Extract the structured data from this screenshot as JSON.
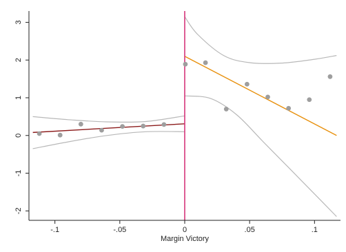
{
  "chart_data": {
    "type": "scatter",
    "title": "",
    "xlabel": "Margin Victory",
    "ylabel": "",
    "xlim": [
      -0.12,
      0.12
    ],
    "ylim": [
      -2.25,
      3.3
    ],
    "grid": false,
    "legend": "none",
    "x_ticks": [
      {
        "value": -0.1,
        "label": "-.1"
      },
      {
        "value": -0.05,
        "label": "-.05"
      },
      {
        "value": 0,
        "label": "0"
      },
      {
        "value": 0.05,
        "label": ".05"
      },
      {
        "value": 0.1,
        "label": ".1"
      }
    ],
    "y_ticks": [
      {
        "value": -2,
        "label": "-2"
      },
      {
        "value": -1,
        "label": "-1"
      },
      {
        "value": 0,
        "label": "0"
      },
      {
        "value": 1,
        "label": "1"
      },
      {
        "value": 2,
        "label": "2"
      },
      {
        "value": 3,
        "label": "3"
      }
    ],
    "cutoff_x": 0,
    "points": [
      {
        "x": -0.112,
        "y": 0.05
      },
      {
        "x": -0.096,
        "y": 0.01
      },
      {
        "x": -0.08,
        "y": 0.3
      },
      {
        "x": -0.064,
        "y": 0.14
      },
      {
        "x": -0.048,
        "y": 0.24
      },
      {
        "x": -0.032,
        "y": 0.25
      },
      {
        "x": -0.016,
        "y": 0.29
      },
      {
        "x": 0.0005,
        "y": 1.89
      },
      {
        "x": 0.016,
        "y": 1.93
      },
      {
        "x": 0.032,
        "y": 0.7
      },
      {
        "x": 0.048,
        "y": 1.36
      },
      {
        "x": 0.064,
        "y": 1.02
      },
      {
        "x": 0.08,
        "y": 0.72
      },
      {
        "x": 0.096,
        "y": 0.95
      },
      {
        "x": 0.112,
        "y": 1.56
      }
    ],
    "fit_left": {
      "x": [
        -0.117,
        0
      ],
      "y": [
        0.08,
        0.31
      ]
    },
    "fit_right": {
      "x": [
        0,
        0.117
      ],
      "y": [
        2.1,
        0.0
      ]
    },
    "ci_left_upper": {
      "x": [
        -0.117,
        -0.09,
        -0.06,
        -0.03,
        0
      ],
      "y": [
        0.5,
        0.42,
        0.36,
        0.37,
        0.52
      ]
    },
    "ci_left_lower": {
      "x": [
        -0.117,
        -0.09,
        -0.06,
        -0.03,
        0
      ],
      "y": [
        -0.35,
        -0.17,
        0.0,
        0.1,
        0.1
      ]
    },
    "ci_right_upper": {
      "x": [
        0,
        0.01,
        0.03,
        0.05,
        0.075,
        0.1,
        0.117
      ],
      "y": [
        3.15,
        2.68,
        2.12,
        1.93,
        1.92,
        2.02,
        2.12
      ]
    },
    "ci_right_lower": {
      "x": [
        0,
        0.02,
        0.04,
        0.06,
        0.08,
        0.1,
        0.117
      ],
      "y": [
        1.05,
        0.98,
        0.55,
        -0.15,
        -0.85,
        -1.55,
        -2.15
      ]
    },
    "colors": {
      "points": "#9e9e9e",
      "fit_left": "#8b1a1a",
      "fit_right": "#e8900c",
      "ci": "#b8b8b8",
      "cutoff": "#d6337a",
      "axis": "#222222"
    }
  }
}
